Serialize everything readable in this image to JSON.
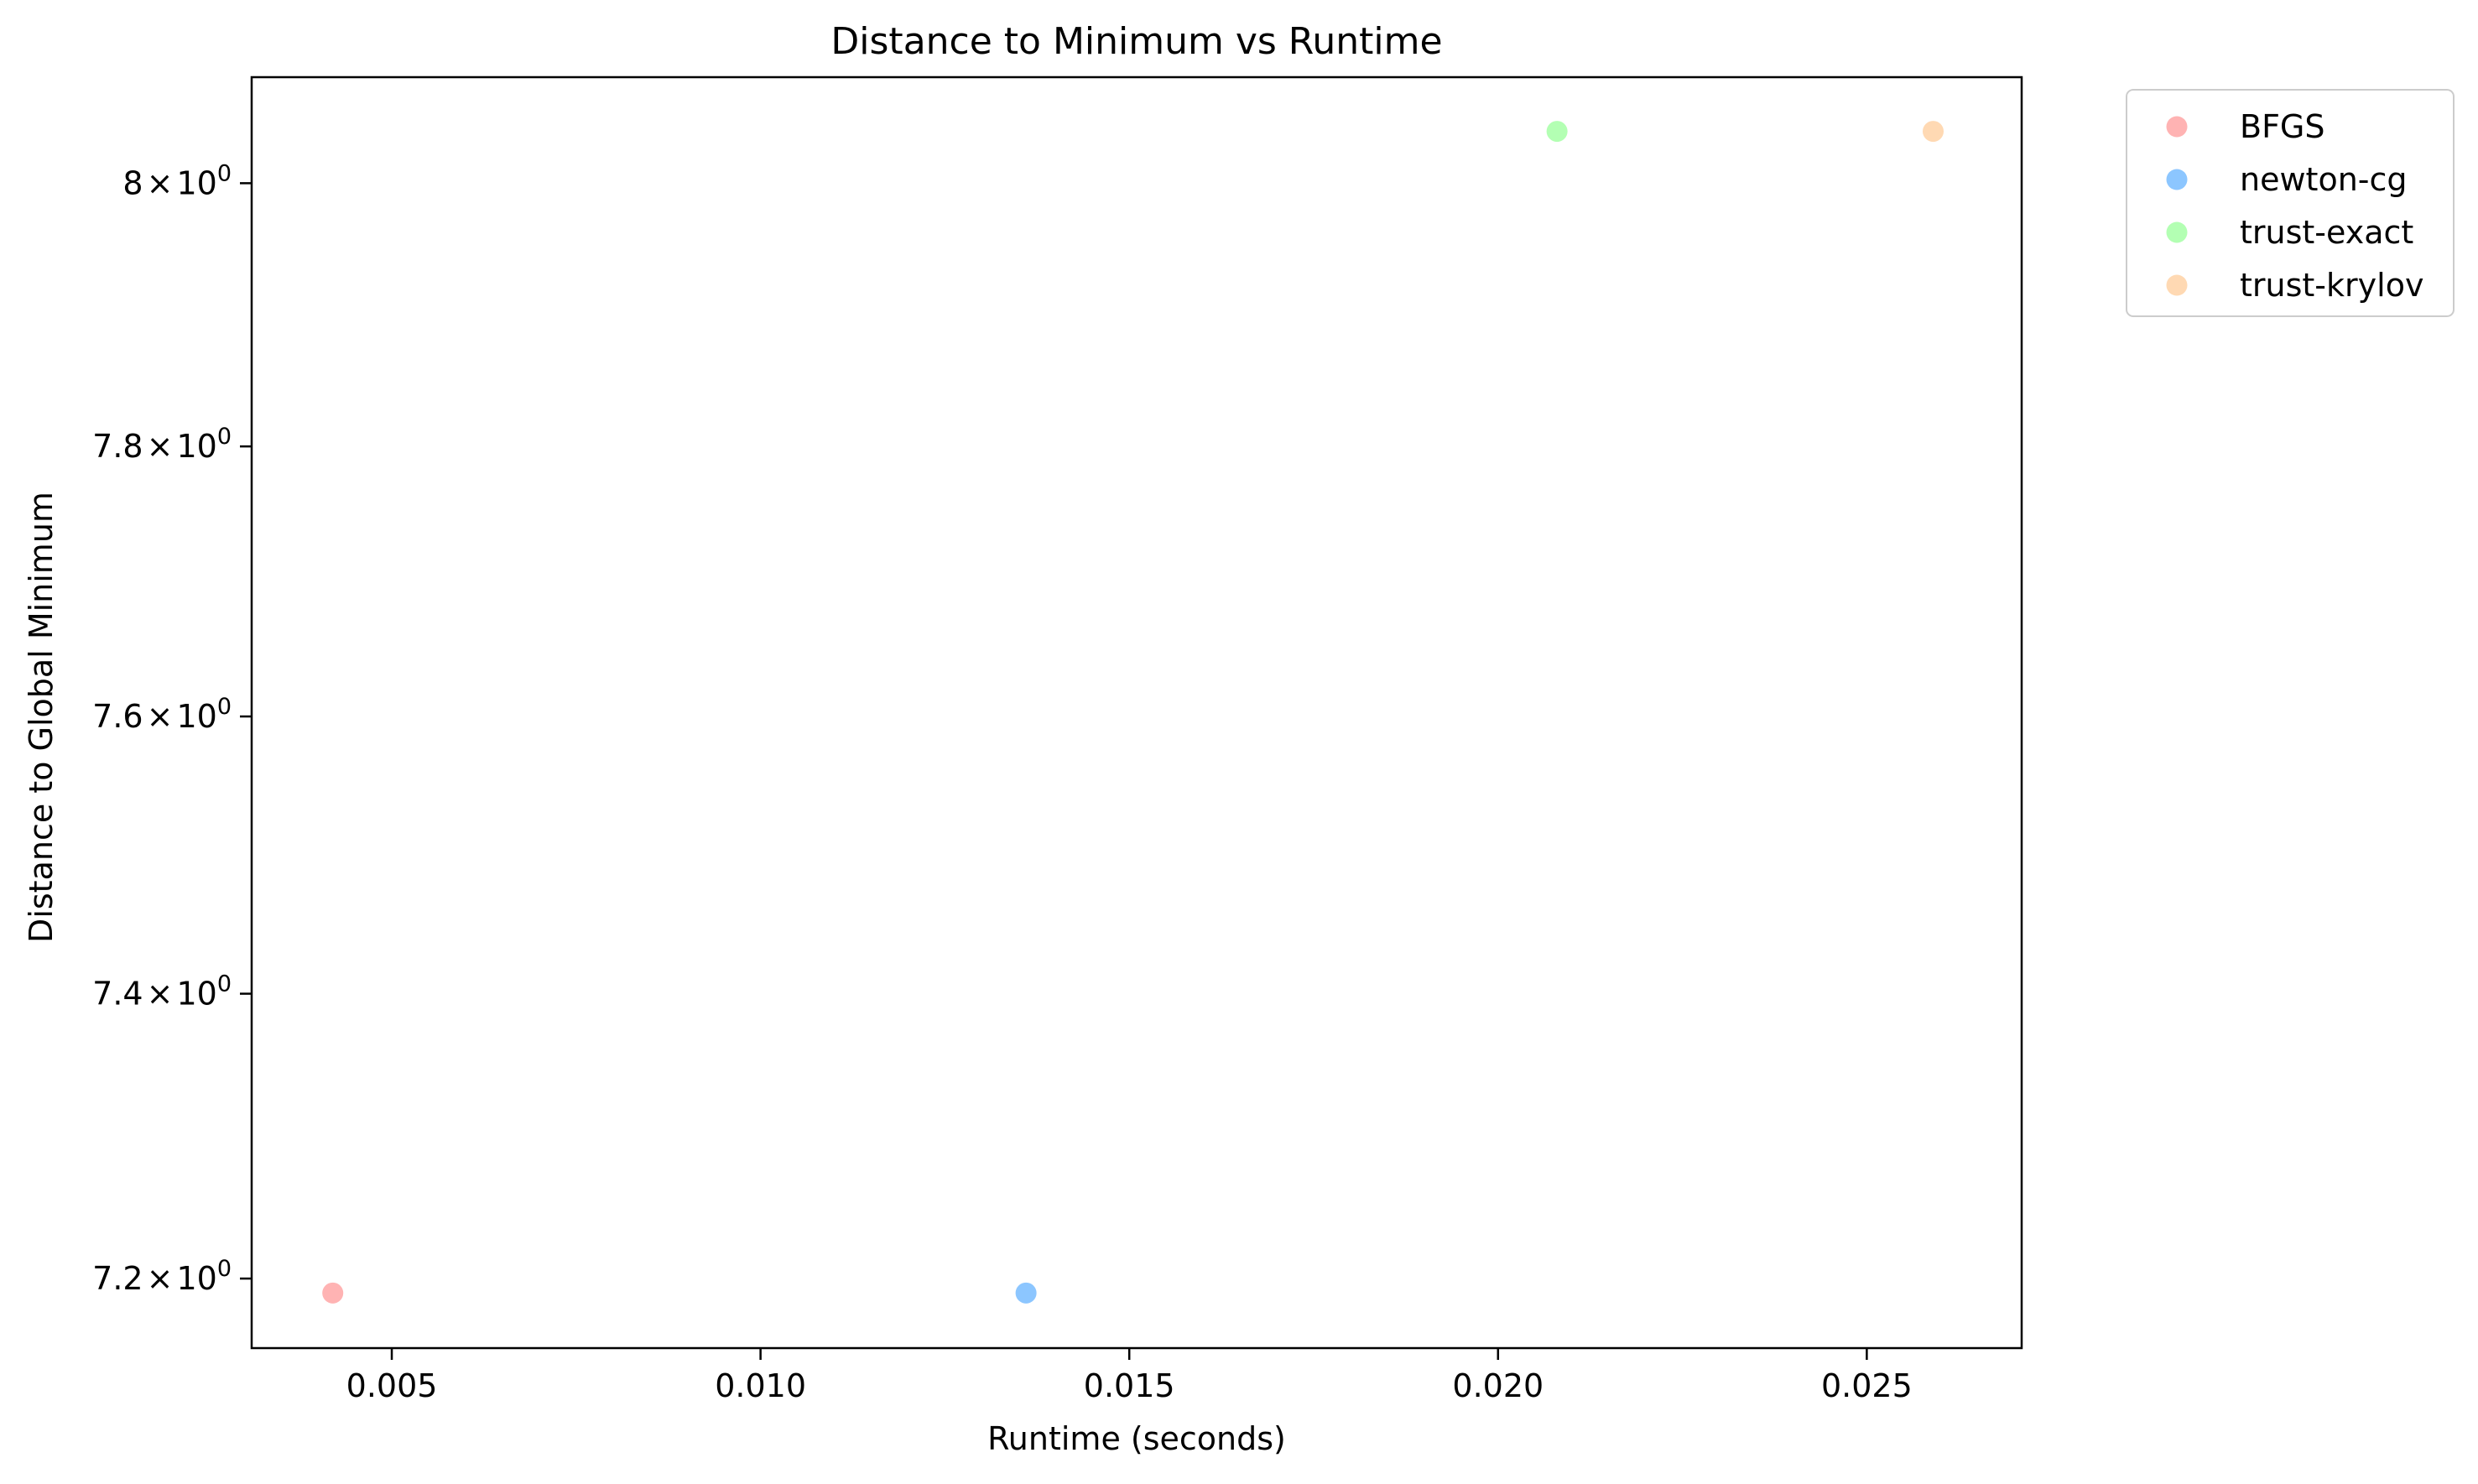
{
  "chart_data": {
    "type": "scatter",
    "title": "Distance to Minimum vs Runtime",
    "xlabel": "Runtime (seconds)",
    "ylabel": "Distance to Global Minimum",
    "xlim": [
      0.0031,
      0.0271
    ],
    "ylim": [
      7.152,
      8.082
    ],
    "yscale": "log",
    "grid": false,
    "legend_position": "outside-right-top",
    "xticks": [
      {
        "value": 0.005,
        "label": "0.005"
      },
      {
        "value": 0.01,
        "label": "0.010"
      },
      {
        "value": 0.015,
        "label": "0.015"
      },
      {
        "value": 0.02,
        "label": "0.020"
      },
      {
        "value": 0.025,
        "label": "0.025"
      }
    ],
    "yticks": [
      {
        "value": 7.2,
        "mantissa": "7.2",
        "times": "×",
        "base": "10",
        "exp": "0"
      },
      {
        "value": 7.4,
        "mantissa": "7.4",
        "times": "×",
        "base": "10",
        "exp": "0"
      },
      {
        "value": 7.6,
        "mantissa": "7.6",
        "times": "×",
        "base": "10",
        "exp": "0"
      },
      {
        "value": 7.8,
        "mantissa": "7.8",
        "times": "×",
        "base": "10",
        "exp": "0"
      },
      {
        "value": 8.0,
        "mantissa": "8",
        "times": "×",
        "base": "10",
        "exp": "0"
      }
    ],
    "series": [
      {
        "name": "BFGS",
        "color": "#ff9999",
        "points": [
          {
            "x": 0.0042,
            "y": 7.19
          }
        ]
      },
      {
        "name": "newton-cg",
        "color": "#66b3ff",
        "points": [
          {
            "x": 0.0136,
            "y": 7.19
          }
        ]
      },
      {
        "name": "trust-exact",
        "color": "#99ff99",
        "points": [
          {
            "x": 0.0208,
            "y": 8.04
          }
        ]
      },
      {
        "name": "trust-krylov",
        "color": "#ffcc99",
        "points": [
          {
            "x": 0.0259,
            "y": 8.04
          }
        ]
      }
    ]
  }
}
